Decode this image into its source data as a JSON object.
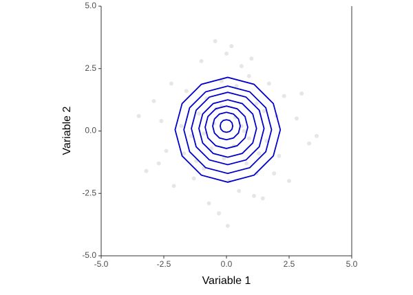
{
  "chart_data": {
    "type": "density_scatter",
    "xlabel": "Variable 1",
    "ylabel": "Variable 2",
    "xlim": [
      -5.0,
      5.0
    ],
    "ylim": [
      -5.0,
      5.0
    ],
    "xticks": [
      {
        "value": -5,
        "label": "-5.0"
      },
      {
        "value": -2.5,
        "label": "-2.5"
      },
      {
        "value": 0,
        "label": "0.0"
      },
      {
        "value": 2.5,
        "label": "2.5"
      },
      {
        "value": 5,
        "label": "5.0"
      }
    ],
    "yticks": [
      {
        "value": -5,
        "label": "-5.0"
      },
      {
        "value": -2.5,
        "label": "-2.5"
      },
      {
        "value": 0,
        "label": "0.0"
      },
      {
        "value": 2.5,
        "label": "2.5"
      },
      {
        "value": 5,
        "label": "5.0"
      }
    ],
    "point_color": "#808080",
    "point_alpha": 0.2,
    "points": {
      "x": [
        -0.5,
        0.3,
        1.2,
        -1.1,
        0.8,
        -0.2,
        1.6,
        -1.8,
        0.1,
        2.3,
        -2.4,
        0.6,
        -0.9,
        1.9,
        -0.4,
        0.0,
        2.8,
        -2.9,
        1.1,
        -1.4,
        0.4,
        -0.7,
        1.5,
        -0.1,
        0.9,
        -1.6,
        3.3,
        -3.2,
        0.2,
        -0.3,
        1.3,
        -2.1,
        2.1,
        -1.0,
        0.7,
        -0.6,
        1.7,
        -1.3,
        0.5,
        -2.6,
        2.5,
        -0.8,
        3.6,
        -3.5,
        0.05,
        1.0,
        -1.2,
        0.35,
        -0.45,
        1.45,
        -0.2,
        0.6,
        -1.7,
        2.0,
        -2.2,
        0.9,
        3.0,
        -2.7,
        1.2,
        -0.9
      ],
      "y": [
        0.3,
        -0.6,
        1.1,
        0.7,
        -1.3,
        2.0,
        -0.4,
        0.2,
        -2.0,
        1.4,
        -0.8,
        2.6,
        -1.5,
        -1.7,
        0.9,
        3.1,
        0.5,
        1.2,
        -2.6,
        -0.2,
        1.8,
        -2.9,
        0.8,
        -1.1,
        2.2,
        1.6,
        -0.5,
        -1.6,
        3.4,
        -3.3,
        -0.9,
        -2.2,
        -1.0,
        2.8,
        0.0,
        -0.7,
        1.9,
        -1.9,
        -2.4,
        0.4,
        -2.0,
        1.3,
        -0.2,
        0.6,
        -3.8,
        2.9,
        -1.2,
        0.55,
        3.6,
        -2.7,
        1.0,
        0.2,
        -0.9,
        0.6,
        1.9,
        -0.3,
        1.5,
        -1.3,
        -1.7,
        -0.1
      ]
    },
    "contour_color": "#0000cc",
    "contours": [
      {
        "x": [
          2.15,
          1.87,
          1.1,
          0.05,
          -1.0,
          -1.77,
          -2.05,
          -1.77,
          -1.0,
          0.05,
          1.1,
          1.87
        ],
        "y": [
          0.05,
          1.1,
          1.87,
          2.15,
          1.87,
          1.1,
          0.05,
          -1.0,
          -1.77,
          -2.05,
          -1.77,
          -1.0
        ]
      },
      {
        "x": [
          1.8,
          1.57,
          0.93,
          0.05,
          -0.83,
          -1.47,
          -1.7,
          -1.47,
          -0.83,
          0.05,
          0.93,
          1.57
        ],
        "y": [
          0.05,
          0.93,
          1.57,
          1.8,
          1.57,
          0.93,
          0.05,
          -0.83,
          -1.47,
          -1.7,
          -1.47,
          -0.83
        ]
      },
      {
        "x": [
          1.5,
          1.31,
          0.78,
          0.05,
          -0.68,
          -1.21,
          -1.4,
          -1.21,
          -0.68,
          0.05,
          0.78,
          1.31
        ],
        "y": [
          0.1,
          0.83,
          1.36,
          1.55,
          1.36,
          0.83,
          0.1,
          -0.63,
          -1.16,
          -1.35,
          -1.16,
          -0.63
        ]
      },
      {
        "x": [
          1.2,
          1.05,
          0.63,
          0.05,
          -0.53,
          -0.95,
          -1.1,
          -0.95,
          -0.53,
          0.05,
          0.63,
          1.05
        ],
        "y": [
          0.1,
          0.68,
          1.1,
          1.25,
          1.1,
          0.68,
          0.1,
          -0.48,
          -0.9,
          -1.05,
          -0.9,
          -0.48
        ]
      },
      {
        "x": [
          0.85,
          0.74,
          0.43,
          0,
          -0.43,
          -0.74,
          -0.85,
          -0.74,
          -0.43,
          0,
          0.43,
          0.74
        ],
        "y": [
          0.15,
          0.58,
          0.89,
          1.0,
          0.89,
          0.58,
          0.15,
          -0.28,
          -0.59,
          -0.7,
          -0.59,
          -0.28
        ]
      },
      {
        "x": [
          0.55,
          0.48,
          0.28,
          0,
          -0.28,
          -0.48,
          -0.55,
          -0.48,
          -0.28,
          0,
          0.28,
          0.48
        ],
        "y": [
          0.2,
          0.48,
          0.68,
          0.75,
          0.68,
          0.48,
          0.2,
          -0.08,
          -0.28,
          -0.35,
          -0.28,
          -0.08
        ]
      },
      {
        "x": [
          0.25,
          0.22,
          0.13,
          0,
          -0.13,
          -0.22,
          -0.25,
          -0.22,
          -0.13,
          0,
          0.13,
          0.22
        ],
        "y": [
          0.2,
          0.33,
          0.42,
          0.45,
          0.42,
          0.33,
          0.2,
          0.07,
          -0.02,
          -0.05,
          -0.02,
          0.07
        ]
      }
    ]
  }
}
